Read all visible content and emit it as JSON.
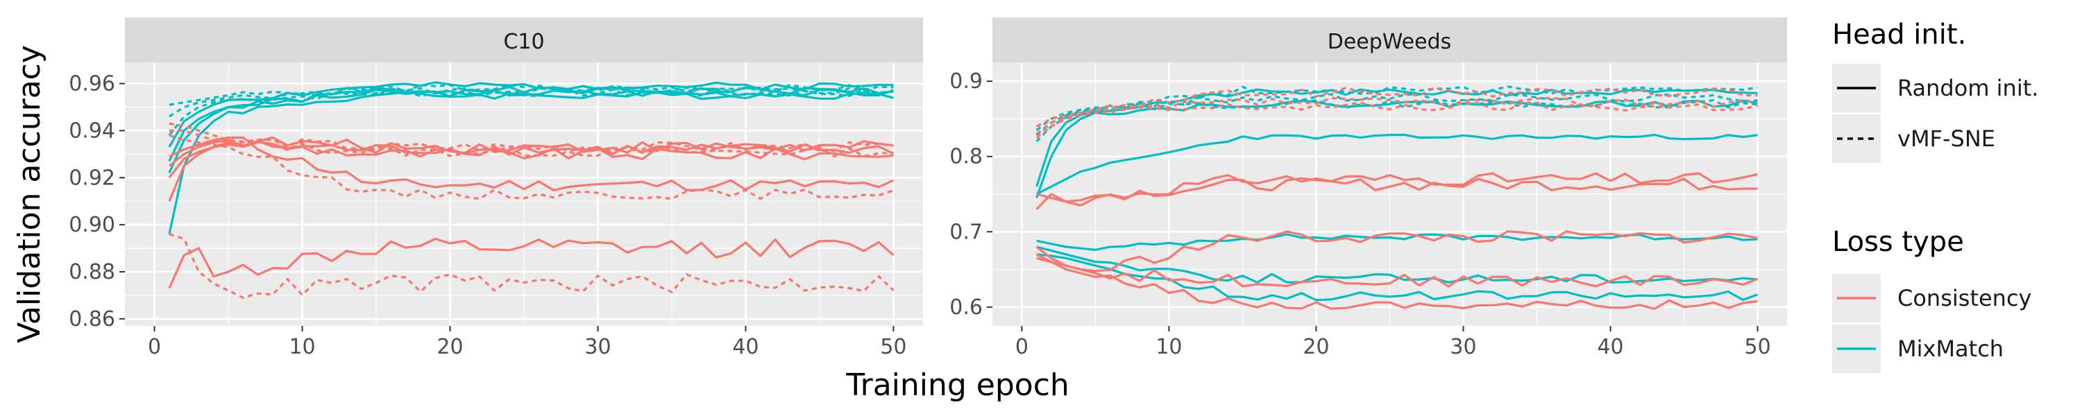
{
  "chart_data": {
    "type": "line",
    "xlabel": "Training epoch",
    "ylabel": "Validation accuracy",
    "legends": {
      "head_init": {
        "title": "Head init.",
        "entries": [
          {
            "label": "Random init.",
            "linetype": "solid"
          },
          {
            "label": "vMF-SNE",
            "linetype": "dashed"
          }
        ]
      },
      "loss_type": {
        "title": "Loss type",
        "entries": [
          {
            "label": "Consistency",
            "color": "#F8766D"
          },
          {
            "label": "MixMatch",
            "color": "#00BFC4"
          }
        ]
      }
    },
    "panels": [
      {
        "title": "C10",
        "xlim": [
          -2,
          52
        ],
        "ylim": [
          0.857,
          0.969
        ],
        "xticks": [
          0,
          10,
          20,
          30,
          40,
          50
        ],
        "xtick_labels": [
          "0",
          "10",
          "20",
          "30",
          "40",
          "50"
        ],
        "yticks": [
          0.86,
          0.88,
          0.9,
          0.92,
          0.94,
          0.96
        ],
        "ytick_labels": [
          "0.86",
          "0.88",
          "0.90",
          "0.92",
          "0.94",
          "0.96"
        ],
        "series": [
          {
            "loss": "MixMatch",
            "init": "random",
            "start": [
              0.927,
              0.94,
              0.945,
              0.948,
              0.95
            ],
            "level": 0.957,
            "amp": 0.0015,
            "seed": 1
          },
          {
            "loss": "MixMatch",
            "init": "random",
            "start": [
              0.933,
              0.944,
              0.948,
              0.951,
              0.953
            ],
            "level": 0.959,
            "amp": 0.0015,
            "seed": 2
          },
          {
            "loss": "MixMatch",
            "init": "random",
            "start": [
              0.922,
              0.936,
              0.943,
              0.947,
              0.95
            ],
            "level": 0.956,
            "amp": 0.0015,
            "seed": 3
          },
          {
            "loss": "MixMatch",
            "init": "random",
            "start": [
              0.896,
              0.925,
              0.938,
              0.944,
              0.948
            ],
            "level": 0.955,
            "amp": 0.0015,
            "seed": 4
          },
          {
            "loss": "MixMatch",
            "init": "vmf",
            "start": [
              0.951,
              0.952,
              0.953,
              0.954,
              0.955
            ],
            "level": 0.957,
            "amp": 0.0015,
            "seed": 5
          },
          {
            "loss": "MixMatch",
            "init": "vmf",
            "start": [
              0.946,
              0.95,
              0.952,
              0.953,
              0.954
            ],
            "level": 0.958,
            "amp": 0.0015,
            "seed": 6
          },
          {
            "loss": "MixMatch",
            "init": "vmf",
            "start": [
              0.938,
              0.946,
              0.95,
              0.952,
              0.953
            ],
            "level": 0.956,
            "amp": 0.0015,
            "seed": 7
          },
          {
            "loss": "Consistency",
            "init": "random",
            "start": [
              0.91,
              0.925,
              0.93,
              0.933,
              0.934
            ],
            "level": 0.932,
            "amp": 0.0025,
            "seed": 8
          },
          {
            "loss": "Consistency",
            "init": "random",
            "start": [
              0.92,
              0.928,
              0.931,
              0.933,
              0.935
            ],
            "level": 0.93,
            "amp": 0.0025,
            "seed": 9
          },
          {
            "loss": "Consistency",
            "init": "random",
            "start": [
              0.925,
              0.93,
              0.933,
              0.935,
              0.936
            ],
            "level": 0.933,
            "amp": 0.0025,
            "seed": 10
          },
          {
            "loss": "Consistency",
            "init": "random",
            "start": [
              0.929,
              0.932,
              0.934,
              0.936,
              0.937
            ],
            "level": 0.917,
            "amp": 0.0025,
            "seed": 11
          },
          {
            "loss": "Consistency",
            "init": "random",
            "start": [
              0.873,
              0.887,
              0.89,
              0.878,
              0.88
            ],
            "level": 0.89,
            "amp": 0.004,
            "seed": 12
          },
          {
            "loss": "Consistency",
            "init": "vmf",
            "start": [
              0.94,
              0.94,
              0.938,
              0.936,
              0.935
            ],
            "level": 0.931,
            "amp": 0.002,
            "seed": 13
          },
          {
            "loss": "Consistency",
            "init": "vmf",
            "start": [
              0.943,
              0.942,
              0.94,
              0.938,
              0.936
            ],
            "level": 0.933,
            "amp": 0.002,
            "seed": 14
          },
          {
            "loss": "Consistency",
            "init": "vmf",
            "start": [
              0.938,
              0.936,
              0.935,
              0.934,
              0.933
            ],
            "level": 0.913,
            "amp": 0.002,
            "seed": 15
          },
          {
            "loss": "Consistency",
            "init": "vmf",
            "start": [
              0.896,
              0.894,
              0.88,
              0.875,
              0.872
            ],
            "level": 0.875,
            "amp": 0.004,
            "seed": 16
          }
        ]
      },
      {
        "title": "DeepWeeds",
        "xlim": [
          -2,
          52
        ],
        "ylim": [
          0.575,
          0.925
        ],
        "xticks": [
          0,
          10,
          20,
          30,
          40,
          50
        ],
        "xtick_labels": [
          "0",
          "10",
          "20",
          "30",
          "40",
          "50"
        ],
        "yticks": [
          0.6,
          0.7,
          0.8,
          0.9
        ],
        "ytick_labels": [
          "0.6",
          "0.7",
          "0.8",
          "0.9"
        ],
        "series": [
          {
            "loss": "MixMatch",
            "init": "random",
            "start": [
              0.76,
              0.82,
              0.845,
              0.855,
              0.86
            ],
            "level": 0.885,
            "amp": 0.004,
            "seed": 21
          },
          {
            "loss": "MixMatch",
            "init": "random",
            "start": [
              0.745,
              0.8,
              0.835,
              0.85,
              0.858
            ],
            "level": 0.87,
            "amp": 0.004,
            "seed": 22
          },
          {
            "loss": "MixMatch",
            "init": "random",
            "start": [
              0.75,
              0.76,
              0.77,
              0.78,
              0.785
            ],
            "level": 0.826,
            "amp": 0.003,
            "seed": 23
          },
          {
            "loss": "MixMatch",
            "init": "random",
            "start": [
              0.688,
              0.684,
              0.68,
              0.678,
              0.676
            ],
            "level": 0.693,
            "amp": 0.004,
            "seed": 24
          },
          {
            "loss": "MixMatch",
            "init": "random",
            "start": [
              0.68,
              0.675,
              0.67,
              0.665,
              0.66
            ],
            "level": 0.638,
            "amp": 0.006,
            "seed": 25
          },
          {
            "loss": "MixMatch",
            "init": "random",
            "start": [
              0.67,
              0.668,
              0.665,
              0.66,
              0.655
            ],
            "level": 0.615,
            "amp": 0.006,
            "seed": 26
          },
          {
            "loss": "MixMatch",
            "init": "vmf",
            "start": [
              0.835,
              0.85,
              0.858,
              0.862,
              0.865
            ],
            "level": 0.888,
            "amp": 0.005,
            "seed": 27
          },
          {
            "loss": "MixMatch",
            "init": "vmf",
            "start": [
              0.828,
              0.845,
              0.855,
              0.86,
              0.863
            ],
            "level": 0.878,
            "amp": 0.005,
            "seed": 28
          },
          {
            "loss": "MixMatch",
            "init": "vmf",
            "start": [
              0.82,
              0.84,
              0.852,
              0.858,
              0.862
            ],
            "level": 0.87,
            "amp": 0.005,
            "seed": 29
          },
          {
            "loss": "Consistency",
            "init": "random",
            "start": [
              0.73,
              0.75,
              0.74,
              0.735,
              0.745
            ],
            "level": 0.77,
            "amp": 0.008,
            "seed": 31
          },
          {
            "loss": "Consistency",
            "init": "random",
            "start": [
              0.75,
              0.745,
              0.74,
              0.742,
              0.748
            ],
            "level": 0.763,
            "amp": 0.008,
            "seed": 32
          },
          {
            "loss": "Consistency",
            "init": "random",
            "start": [
              0.665,
              0.66,
              0.655,
              0.65,
              0.648
            ],
            "level": 0.693,
            "amp": 0.008,
            "seed": 33
          },
          {
            "loss": "Consistency",
            "init": "random",
            "start": [
              0.68,
              0.665,
              0.655,
              0.65,
              0.645
            ],
            "level": 0.635,
            "amp": 0.008,
            "seed": 34
          },
          {
            "loss": "Consistency",
            "init": "random",
            "start": [
              0.67,
              0.66,
              0.65,
              0.645,
              0.64
            ],
            "level": 0.603,
            "amp": 0.006,
            "seed": 35
          },
          {
            "loss": "Consistency",
            "init": "vmf",
            "start": [
              0.84,
              0.85,
              0.855,
              0.858,
              0.862
            ],
            "level": 0.885,
            "amp": 0.006,
            "seed": 36
          },
          {
            "loss": "Consistency",
            "init": "vmf",
            "start": [
              0.83,
              0.845,
              0.852,
              0.856,
              0.86
            ],
            "level": 0.872,
            "amp": 0.006,
            "seed": 37
          },
          {
            "loss": "Consistency",
            "init": "vmf",
            "start": [
              0.825,
              0.84,
              0.85,
              0.855,
              0.858
            ],
            "level": 0.866,
            "amp": 0.006,
            "seed": 38
          }
        ]
      }
    ]
  }
}
